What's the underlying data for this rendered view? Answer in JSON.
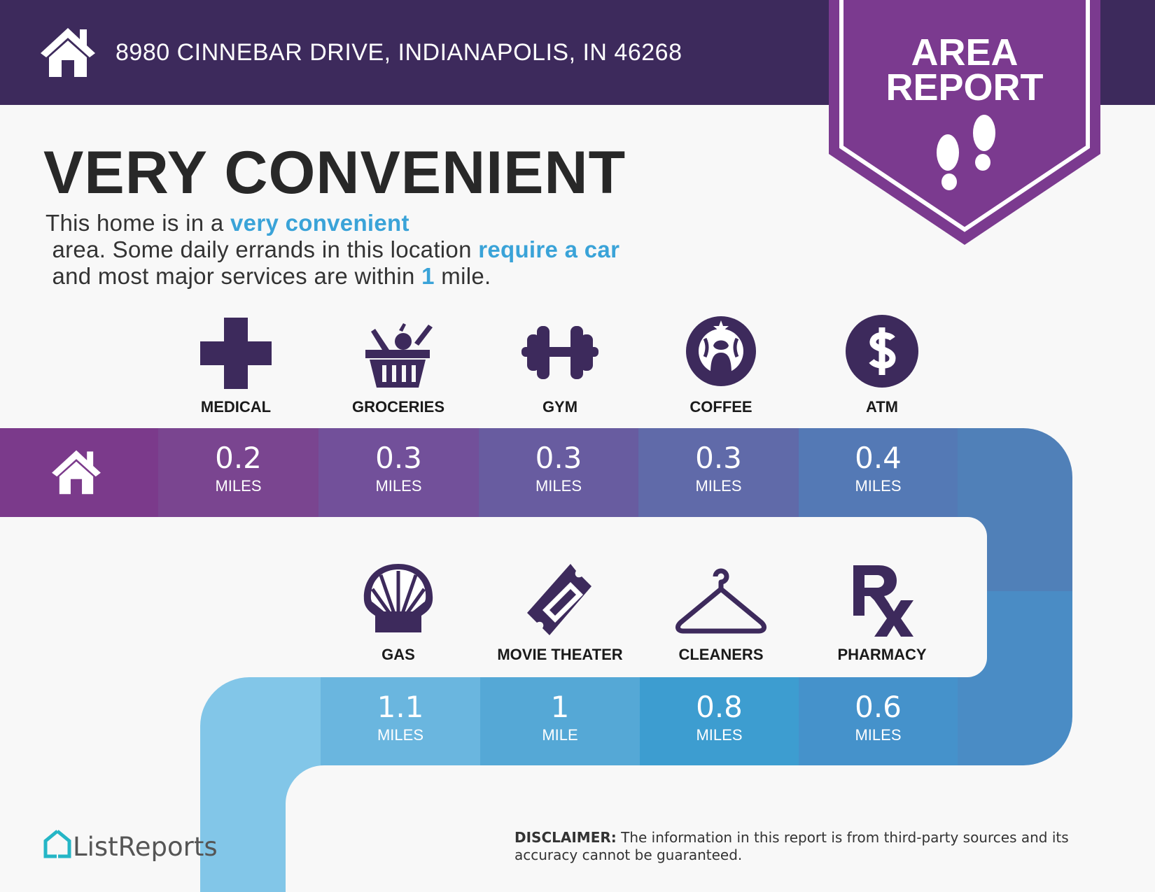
{
  "header": {
    "address": "8980 CINNEBAR DRIVE, INDIANAPOLIS, IN 46268",
    "badge_line1": "AREA",
    "badge_line2": "REPORT"
  },
  "headline": "VERY CONVENIENT",
  "description": {
    "p1": "This home is in a ",
    "h1": "very convenient",
    "p2": " area. Some daily errands in this location ",
    "h2": "require a car",
    "p3": " and most major services are within ",
    "h3": "1",
    "p4": " mile."
  },
  "colors": {
    "header": "#3d2a5c",
    "badge": "#7b3a8f",
    "icon": "#3d2a5c",
    "highlight": "#3aa3d8"
  },
  "row1": [
    {
      "label": "MEDICAL",
      "icon": "medical-cross-icon",
      "distance": "0.2",
      "unit": "MILES"
    },
    {
      "label": "GROCERIES",
      "icon": "grocery-basket-icon",
      "distance": "0.3",
      "unit": "MILES"
    },
    {
      "label": "GYM",
      "icon": "dumbbell-icon",
      "distance": "0.3",
      "unit": "MILES"
    },
    {
      "label": "COFFEE",
      "icon": "starbucks-logo-icon",
      "distance": "0.3",
      "unit": "MILES"
    },
    {
      "label": "ATM",
      "icon": "dollar-icon",
      "distance": "0.4",
      "unit": "MILES"
    }
  ],
  "row2": [
    {
      "label": "GAS",
      "icon": "shell-logo-icon",
      "distance": "1.1",
      "unit": "MILES"
    },
    {
      "label": "MOVIE THEATER",
      "icon": "ticket-icon",
      "distance": "1",
      "unit": "MILE"
    },
    {
      "label": "CLEANERS",
      "icon": "hanger-icon",
      "distance": "0.8",
      "unit": "MILES"
    },
    {
      "label": "PHARMACY",
      "icon": "rx-icon",
      "distance": "0.6",
      "unit": "MILES"
    }
  ],
  "footer": {
    "logo": "ListReports",
    "disclaimer_label": "DISCLAIMER:",
    "disclaimer_text": " The information in this report is from third-party sources and its accuracy cannot be guaranteed."
  }
}
